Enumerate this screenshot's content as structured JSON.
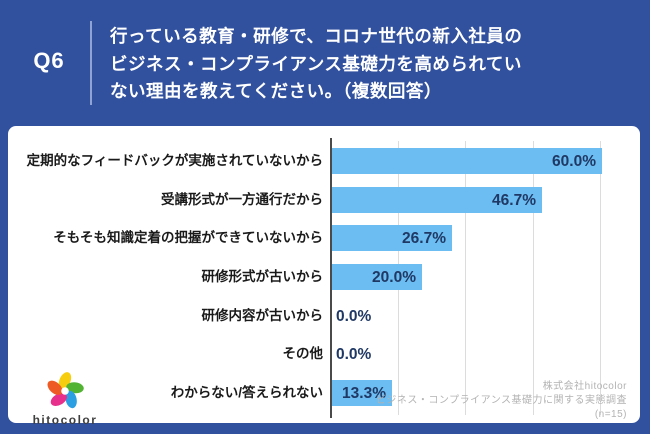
{
  "header": {
    "question_number": "Q6",
    "question_lines": [
      "行っている教育・研修で、コロナ世代の新入社員の",
      "ビジネス・コンプライアンス基礎力を高められてい",
      "ない理由を教えてください。（複数回答）"
    ]
  },
  "chart_data": {
    "type": "bar",
    "orientation": "horizontal",
    "categories": [
      "定期的なフィードバックが実施されていないから",
      "受講形式が一方通行だから",
      "そもそも知識定着の把握ができていないから",
      "研修形式が古いから",
      "研修内容が古いから",
      "その他",
      "わからない/答えられない"
    ],
    "values": [
      60.0,
      46.7,
      26.7,
      20.0,
      0.0,
      0.0,
      13.3
    ],
    "value_labels": [
      "60.0%",
      "46.7%",
      "26.7%",
      "20.0%",
      "0.0%",
      "0.0%",
      "13.3%"
    ],
    "xlim": [
      0,
      60
    ],
    "gridline_interval": 15,
    "grid": true,
    "legend": false,
    "title": "",
    "xlabel": "",
    "ylabel": ""
  },
  "footer": {
    "credit_lines": [
      "株式会社hitocolor",
      "ビジネス・コンプライアンス基礎力に関する実態調査",
      "(n=15)"
    ]
  },
  "logo": {
    "text": "hitocolor",
    "petal_colors": [
      "#F6CE0F",
      "#52B332",
      "#2B9FE2",
      "#E6308C",
      "#EF5B24"
    ]
  },
  "colors": {
    "background": "#31509E",
    "panel": "#FFFFFF",
    "bar": "#6CBDF2",
    "value_label": "#1F3864",
    "category_label": "#1A1A1A",
    "gridline": "#DCDCDC",
    "axis": "#4A4A4A",
    "credit_text": "#B3B3B3",
    "header_text": "#FFFFFF",
    "header_divider": "#8FA3D4"
  }
}
